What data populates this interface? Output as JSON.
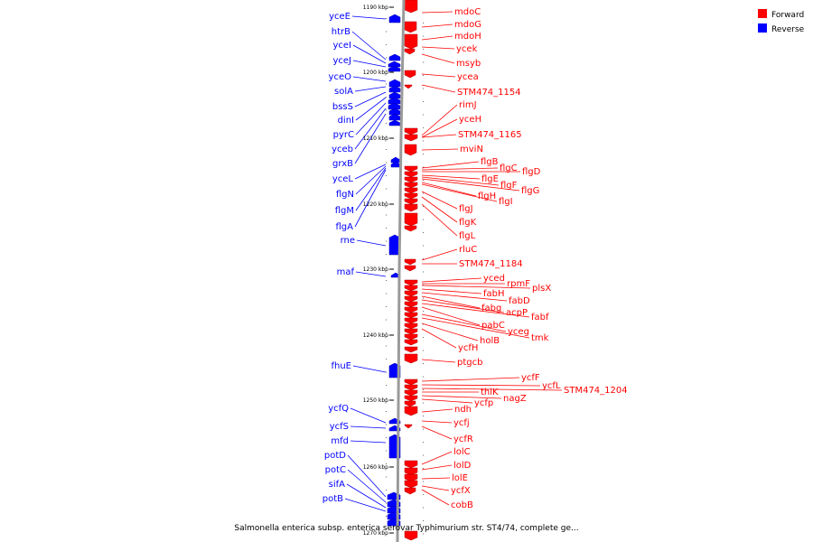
{
  "caption": "Salmonella enterica subsp. enterica serovar Typhimurium str. ST4/74, complete ge...",
  "legend": [
    {
      "label": "Forward",
      "color": "#ff0000"
    },
    {
      "label": "Reverse",
      "color": "#0000ff"
    }
  ],
  "ruler_ticks": [
    "1190 kbp",
    "1200 kbp",
    "1210 kbp",
    "1220 kbp",
    "1230 kbp",
    "1240 kbp",
    "1250 kbp",
    "1260 kbp",
    "1270 kbp"
  ],
  "reverse_genes": [
    "yceE",
    "htrB",
    "yceI",
    "yceJ",
    "yceO",
    "solA",
    "bssS",
    "dinI",
    "pyrC",
    "yceb",
    "grxB",
    "yceL",
    "flgN",
    "flgM",
    "flgA",
    "rne",
    "maf",
    "fhuE",
    "ycfQ",
    "ycfS",
    "mfd",
    "potD",
    "potC",
    "sifA",
    "potB"
  ],
  "forward_genes": [
    "mdoC",
    "mdoG",
    "mdoH",
    "ycek",
    "msyb",
    "ycea",
    "STM474_1154",
    "rimJ",
    "yceH",
    "STM474_1165",
    "mviN",
    "flgB",
    "flgC",
    "flgD",
    "flgE",
    "flgF",
    "flgG",
    "flgH",
    "flgI",
    "flgJ",
    "flgK",
    "flgL",
    "rluC",
    "STM474_1184",
    "yced",
    "rpmF",
    "plsX",
    "fabH",
    "fabD",
    "fabg",
    "acpP",
    "fabf",
    "pabC",
    "yceg",
    "tmk",
    "holB",
    "ycfH",
    "ptgcb",
    "ycfF",
    "ycfL",
    "STM474_1204",
    "thiK",
    "nagZ",
    "ycfp",
    "ndh",
    "ycfj",
    "ycfR",
    "lolC",
    "lolD",
    "lolE",
    "ycfX",
    "cobB"
  ]
}
